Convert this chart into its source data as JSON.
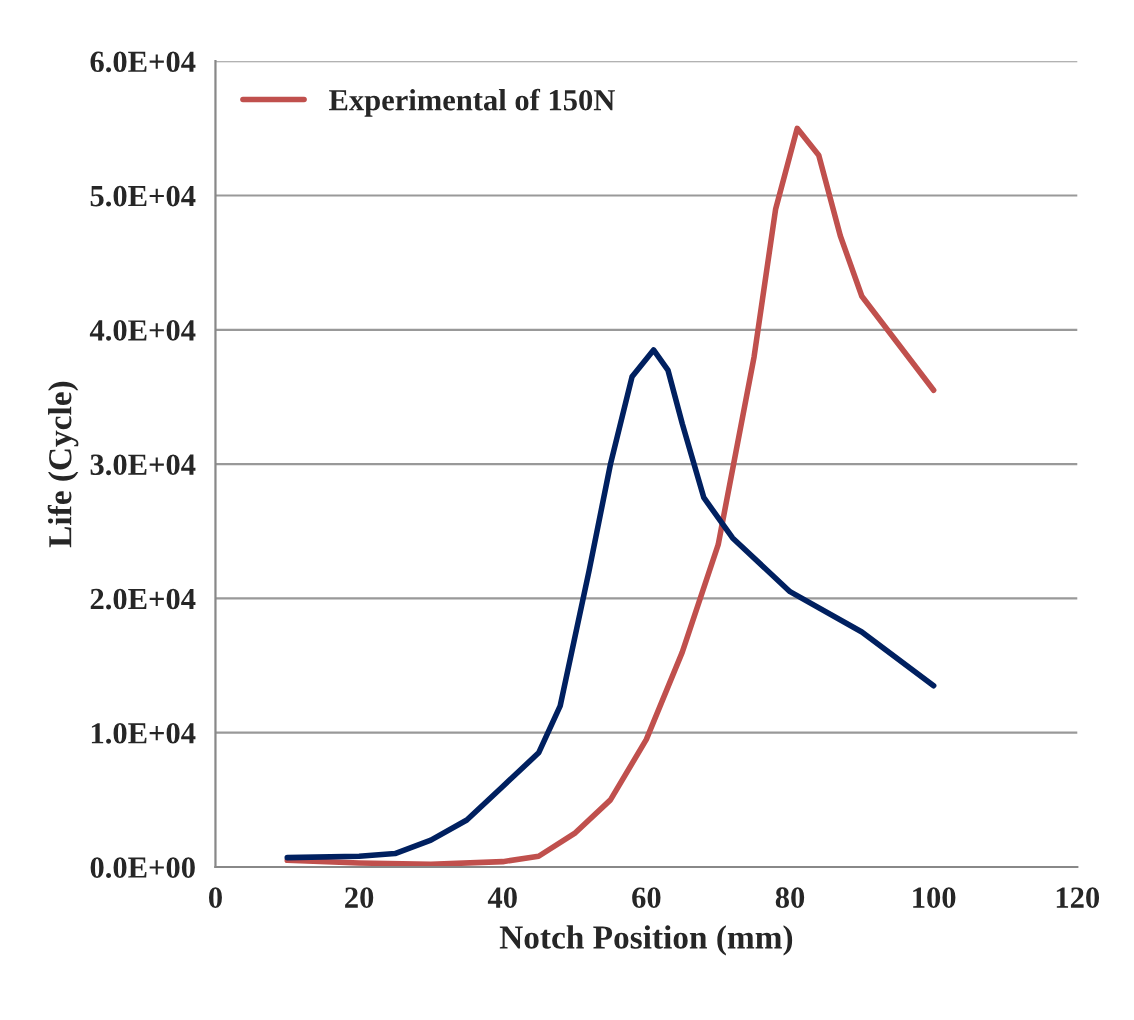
{
  "chart_data": {
    "type": "line",
    "xlabel": "Notch Position (mm)",
    "ylabel": "Life (Cycle)",
    "xlim": [
      0,
      120
    ],
    "xticks": [
      0,
      20,
      40,
      60,
      80,
      100,
      120
    ],
    "ylim": [
      0,
      60000
    ],
    "yticks": [
      {
        "value": 0,
        "label": "0.0E+00"
      },
      {
        "value": 10000,
        "label": "1.0E+04"
      },
      {
        "value": 20000,
        "label": "2.0E+04"
      },
      {
        "value": 30000,
        "label": "3.0E+04"
      },
      {
        "value": 40000,
        "label": "4.0E+04"
      },
      {
        "value": 50000,
        "label": "5.0E+04"
      },
      {
        "value": 60000,
        "label": "6.0E+04"
      }
    ],
    "grid": "y",
    "legend": "top left",
    "marker": "none",
    "line_style": "solid",
    "series": [
      {
        "name": "Experimental of 150N",
        "color": "#c0504d",
        "x": [
          10,
          20,
          30,
          40,
          45,
          50,
          55,
          60,
          65,
          70,
          75,
          78,
          81,
          84,
          87,
          90,
          95,
          100
        ],
        "values": [
          500,
          300,
          200,
          400,
          800,
          2500,
          5000,
          9500,
          16000,
          24000,
          38000,
          49000,
          55000,
          53000,
          47000,
          42500,
          39000,
          35500
        ]
      },
      {
        "color": "#002060",
        "x": [
          10,
          20,
          25,
          30,
          35,
          40,
          45,
          48,
          52,
          55,
          58,
          61,
          63,
          65,
          68,
          72,
          80,
          90,
          100
        ],
        "values": [
          700,
          800,
          1000,
          2000,
          3500,
          6000,
          8500,
          12000,
          22000,
          30000,
          36500,
          38500,
          37000,
          33000,
          27500,
          24500,
          20500,
          17500,
          13500
        ]
      }
    ]
  }
}
